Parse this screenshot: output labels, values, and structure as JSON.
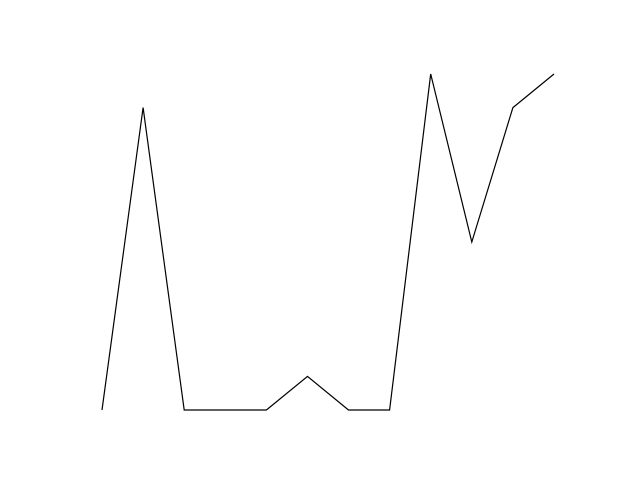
{
  "chart_data": {
    "type": "line",
    "x": [
      0,
      1,
      2,
      3,
      4,
      5,
      6,
      7,
      8,
      9,
      10,
      11
    ],
    "series": [
      {
        "values": [
          0,
          9,
          0,
          0,
          0,
          1,
          0,
          0,
          10,
          5,
          9,
          10
        ]
      }
    ],
    "title": "",
    "xlabel": "",
    "ylabel": "",
    "xlim": [
      0,
      11
    ],
    "ylim": [
      0,
      10
    ],
    "grid": false,
    "axes_visible": false,
    "line_color": "#000000"
  }
}
